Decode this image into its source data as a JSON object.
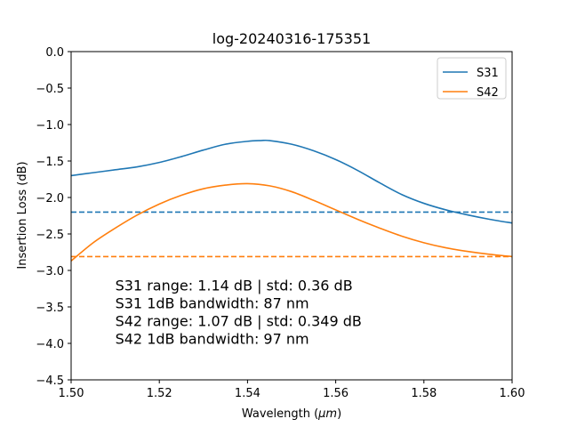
{
  "chart_data": {
    "type": "line",
    "title": "log-20240316-175351",
    "xlabel": "Wavelength (",
    "xlabel_unit": "μm",
    "xlabel_close": ")",
    "ylabel": "Insertion Loss (dB)",
    "xlim": [
      1.5,
      1.6
    ],
    "ylim": [
      -4.5,
      0.0
    ],
    "x_ticks": [
      1.5,
      1.52,
      1.54,
      1.56,
      1.58,
      1.6
    ],
    "x_tick_labels": [
      "1.50",
      "1.52",
      "1.54",
      "1.56",
      "1.58",
      "1.60"
    ],
    "y_ticks": [
      0.0,
      -0.5,
      -1.0,
      -1.5,
      -2.0,
      -2.5,
      -3.0,
      -3.5,
      -4.0,
      -4.5
    ],
    "y_tick_labels": [
      "0.0",
      "−0.5",
      "−1.0",
      "−1.5",
      "−2.0",
      "−2.5",
      "−3.0",
      "−3.5",
      "−4.0",
      "−4.5"
    ],
    "grid": false,
    "legend_position": "top-right",
    "series": [
      {
        "name": "S31",
        "color": "#1f77b4",
        "x": [
          1.5,
          1.505,
          1.51,
          1.515,
          1.52,
          1.525,
          1.53,
          1.535,
          1.54,
          1.543,
          1.545,
          1.55,
          1.555,
          1.56,
          1.565,
          1.57,
          1.575,
          1.58,
          1.585,
          1.59,
          1.595,
          1.6
        ],
        "y": [
          -1.7,
          -1.66,
          -1.62,
          -1.58,
          -1.52,
          -1.44,
          -1.35,
          -1.27,
          -1.23,
          -1.22,
          -1.22,
          -1.27,
          -1.36,
          -1.48,
          -1.63,
          -1.8,
          -1.96,
          -2.08,
          -2.17,
          -2.24,
          -2.3,
          -2.35
        ]
      },
      {
        "name": "S42",
        "color": "#ff7f0e",
        "x": [
          1.5,
          1.505,
          1.51,
          1.515,
          1.52,
          1.525,
          1.53,
          1.535,
          1.54,
          1.545,
          1.55,
          1.555,
          1.56,
          1.565,
          1.57,
          1.575,
          1.58,
          1.585,
          1.59,
          1.595,
          1.6
        ],
        "y": [
          -2.87,
          -2.62,
          -2.42,
          -2.24,
          -2.09,
          -1.97,
          -1.88,
          -1.83,
          -1.81,
          -1.84,
          -1.92,
          -2.04,
          -2.17,
          -2.3,
          -2.42,
          -2.53,
          -2.62,
          -2.69,
          -2.74,
          -2.78,
          -2.81
        ]
      }
    ],
    "reference_lines": [
      {
        "series": "S31",
        "y": -2.2,
        "color": "#1f77b4",
        "style": "dashed"
      },
      {
        "series": "S42",
        "y": -2.81,
        "color": "#ff7f0e",
        "style": "dashed"
      }
    ],
    "annotations": [
      "S31 range: 1.14 dB | std: 0.36 dB",
      "S31 1dB bandwidth: 87 nm",
      "S42 range: 1.07 dB | std: 0.349 dB",
      "S42 1dB bandwidth: 97 nm"
    ],
    "annotation_anchor": {
      "x": 1.51,
      "y": -3.2
    },
    "colors": {
      "background": "#ffffff",
      "axes": "#000000"
    }
  }
}
